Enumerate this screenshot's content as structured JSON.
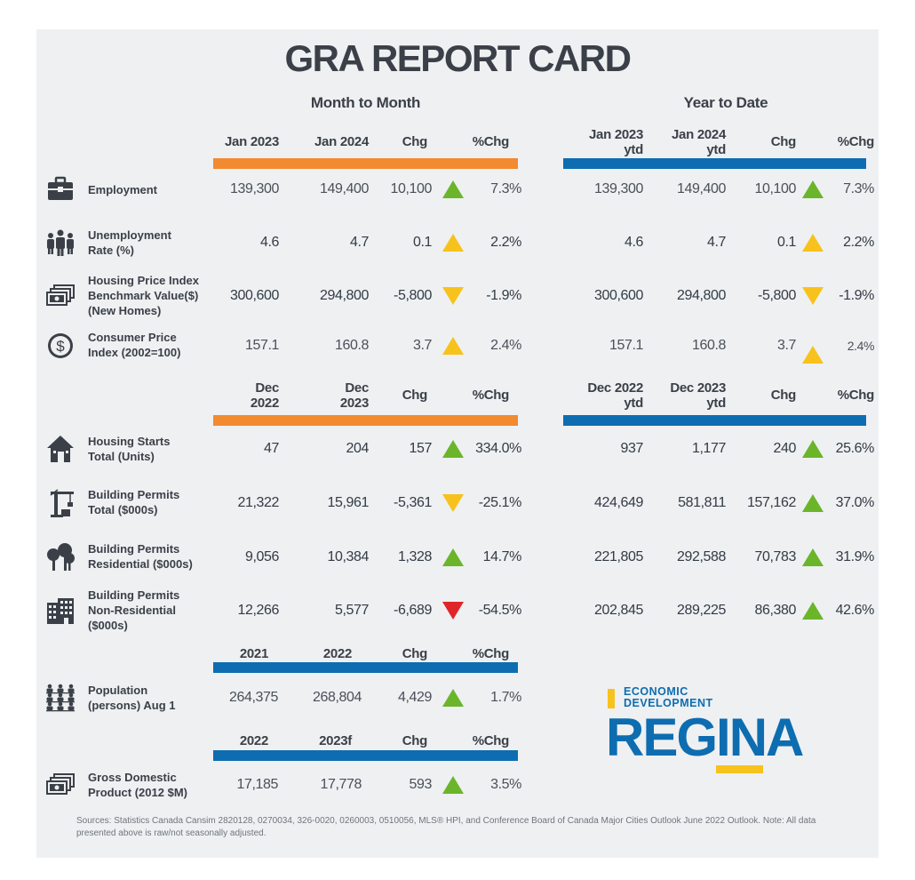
{
  "title": "GRA REPORT CARD",
  "groups": {
    "month_to_month": "Month to Month",
    "year_to_date": "Year to Date"
  },
  "headers": {
    "a_left": [
      "Jan 2023",
      "Jan 2024",
      "Chg",
      "%Chg"
    ],
    "a_right": [
      "Jan 2023\nytd",
      "Jan 2024\nytd",
      "Chg",
      "%Chg"
    ],
    "b_left": [
      "Dec\n2022",
      "Dec\n2023",
      "Chg",
      "%Chg"
    ],
    "b_right": [
      "Dec 2022\nytd",
      "Dec 2023\nytd",
      "Chg",
      "%Chg"
    ],
    "c_left": [
      "2021",
      "2022",
      "Chg",
      "%Chg"
    ],
    "d_left": [
      "2022",
      "2023f",
      "Chg",
      "%Chg"
    ]
  },
  "rows": [
    {
      "label": "Employment",
      "icon": "briefcase-icon",
      "left": [
        "139,300",
        "149,400",
        "10,100",
        "7.3%"
      ],
      "left_trend": "up-green",
      "right": [
        "139,300",
        "149,400",
        "10,100",
        "7.3%"
      ],
      "right_trend": "up-green"
    },
    {
      "label": "Unemployment\nRate (%)",
      "icon": "people-icon",
      "left": [
        "4.6",
        "4.7",
        "0.1",
        "2.2%"
      ],
      "left_trend": "up-yellow",
      "right": [
        "4.6",
        "4.7",
        "0.1",
        "2.2%"
      ],
      "right_trend": "up-yellow"
    },
    {
      "label": "Housing Price Index\nBenchmark Value($)\n(New Homes)",
      "icon": "cash-stack-icon",
      "left": [
        "300,600",
        "294,800",
        "-5,800",
        "-1.9%"
      ],
      "left_trend": "down-yellow",
      "right": [
        "300,600",
        "294,800",
        "-5,800",
        "-1.9%"
      ],
      "right_trend": "down-yellow"
    },
    {
      "label": "Consumer Price\nIndex (2002=100)",
      "icon": "dollar-coin-icon",
      "left": [
        "157.1",
        "160.8",
        "3.7",
        "2.4%"
      ],
      "left_trend": "up-yellow",
      "right": [
        "157.1",
        "160.8",
        "3.7",
        "2.4%"
      ],
      "right_trend": "up-yellow"
    },
    {
      "label": "Housing Starts\nTotal (Units)",
      "icon": "house-icon",
      "left": [
        "47",
        "204",
        "157",
        "334.0%"
      ],
      "left_trend": "up-green",
      "right": [
        "937",
        "1,177",
        "240",
        "25.6%"
      ],
      "right_trend": "up-green"
    },
    {
      "label": "Building Permits\nTotal ($000s)",
      "icon": "crane-icon",
      "left": [
        "21,322",
        "15,961",
        "-5,361",
        "-25.1%"
      ],
      "left_trend": "down-yellow",
      "right": [
        "424,649",
        "581,811",
        "157,162",
        "37.0%"
      ],
      "right_trend": "up-green"
    },
    {
      "label": "Building Permits\nResidential ($000s)",
      "icon": "trees-icon",
      "left": [
        "9,056",
        "10,384",
        "1,328",
        "14.7%"
      ],
      "left_trend": "up-green",
      "right": [
        "221,805",
        "292,588",
        "70,783",
        "31.9%"
      ],
      "right_trend": "up-green"
    },
    {
      "label": "Building Permits\nNon-Residential\n($000s)",
      "icon": "office-building-icon",
      "left": [
        "12,266",
        "5,577",
        "-6,689",
        "-54.5%"
      ],
      "left_trend": "down-red",
      "right": [
        "202,845",
        "289,225",
        "86,380",
        "42.6%"
      ],
      "right_trend": "up-green"
    },
    {
      "label": "Population\n(persons) Aug 1",
      "icon": "population-icon",
      "left": [
        "264,375",
        "268,804",
        "4,429",
        "1.7%"
      ],
      "left_trend": "up-green"
    },
    {
      "label": "Gross Domestic\nProduct (2012 $M)",
      "icon": "cash-stack-icon",
      "left": [
        "17,185",
        "17,778",
        "593",
        "3.5%"
      ],
      "left_trend": "up-green"
    }
  ],
  "logo": {
    "line1": "ECONOMIC",
    "line2": "DEVELOPMENT",
    "name": "REGINA"
  },
  "sources": "Sources: Statistics Canada Cansim 2820128, 0270034, 326-0020, 0260003, 0510056, MLS® HPI, and Conference Board of Canada Major Cities Outlook June 2022 Outlook. Note: All data presented above is raw/not seasonally adjusted.",
  "colors": {
    "orange_bar": "#f28a30",
    "blue_bar": "#0d6db0",
    "up_green": "#6bb52a",
    "yellow": "#f8c21c",
    "down_red": "#e02528",
    "logo_blue": "#0d6db0",
    "logo_yellow": "#f8c21c"
  }
}
